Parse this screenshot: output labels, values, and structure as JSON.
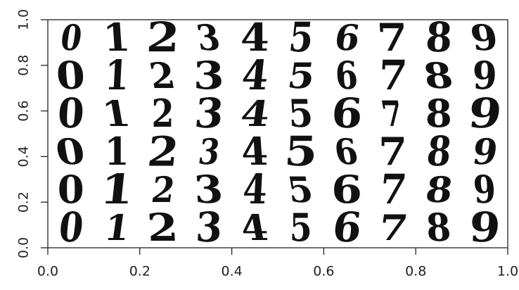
{
  "chart_data": {
    "type": "image",
    "image_columns": [
      "0",
      "1",
      "2",
      "3",
      "4",
      "5",
      "6",
      "7",
      "8",
      "9"
    ],
    "xlim": [
      0,
      1
    ],
    "ylim": [
      0,
      1
    ],
    "xticks": [
      {
        "value": 0,
        "label": "0.0"
      },
      0.2,
      0.4,
      0.6,
      0.8,
      {
        "value": 1,
        "label": "1.0"
      }
    ],
    "yticks": [
      {
        "value": 0,
        "label": "0.0"
      },
      0.2,
      0.4,
      0.6,
      0.8,
      {
        "value": 1,
        "label": "1.0"
      }
    ]
  }
}
